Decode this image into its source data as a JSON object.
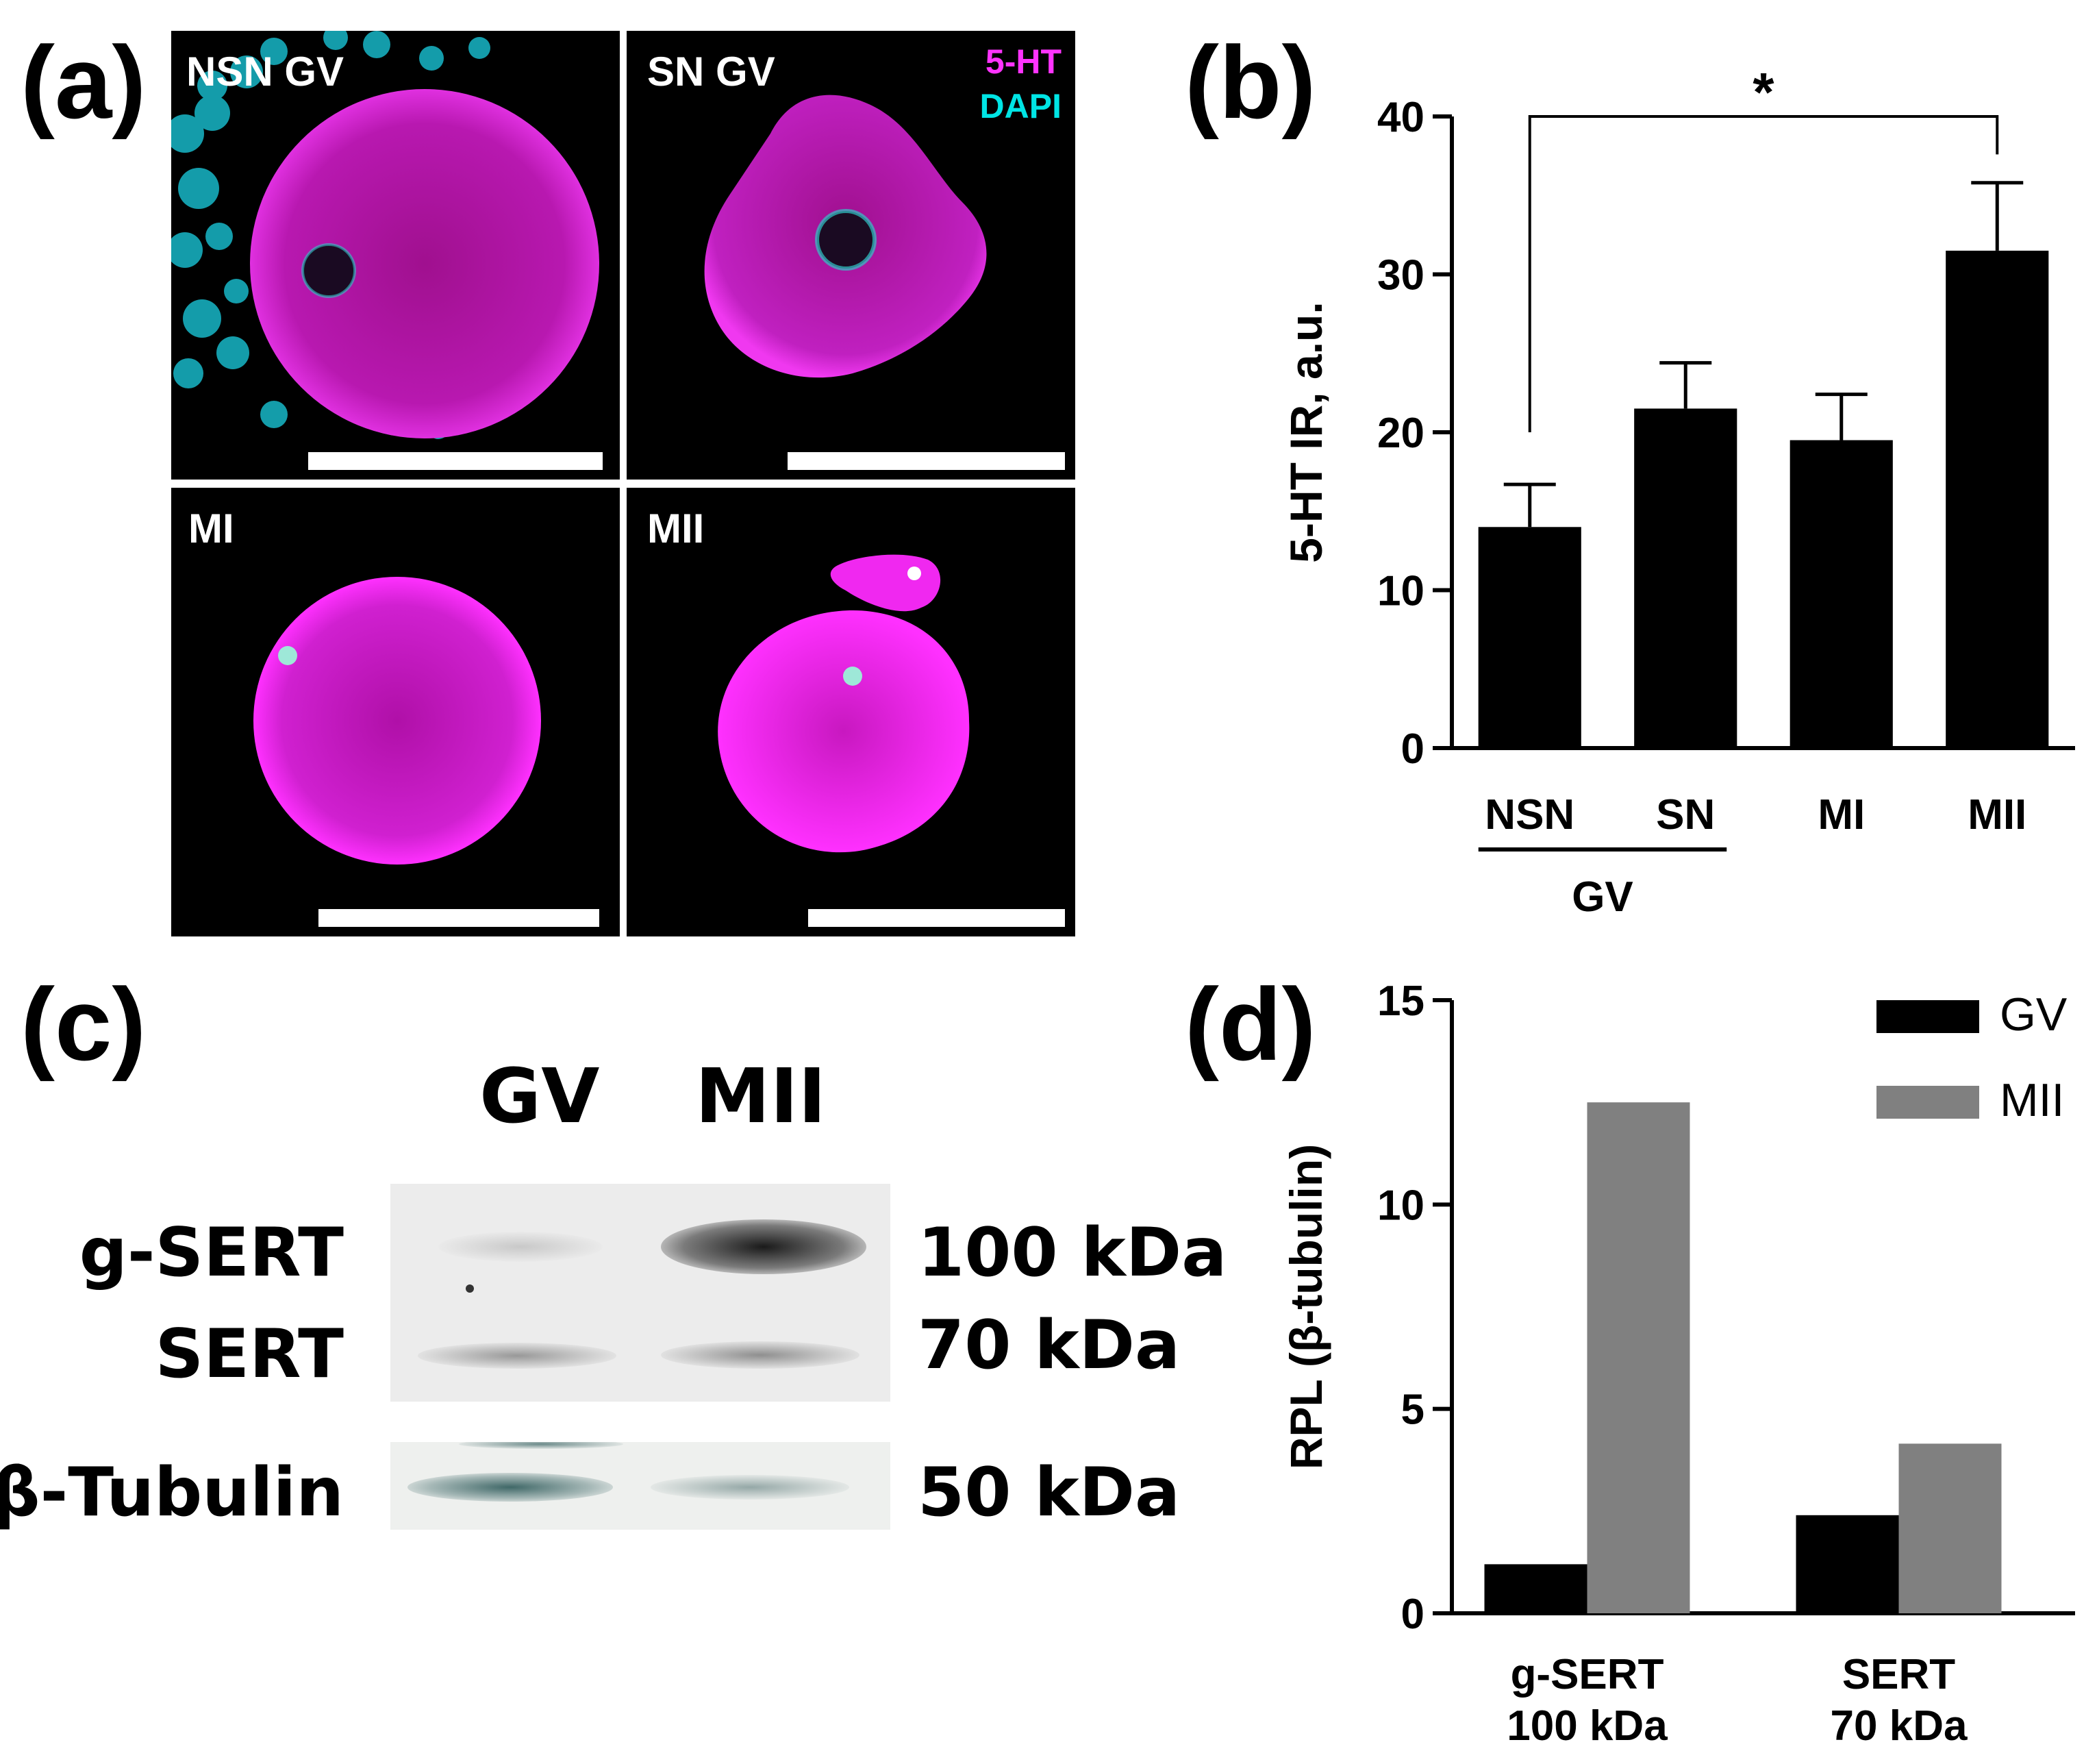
{
  "panels": {
    "a": {
      "letter": "(a)",
      "images": [
        {
          "label": "NSN GV",
          "stage": "NSN GV"
        },
        {
          "label": "SN GV",
          "stage": "SN GV"
        },
        {
          "label": "MI",
          "stage": "MI"
        },
        {
          "label": "MII",
          "stage": "MII"
        }
      ],
      "legend": {
        "serotonin": "5-HT",
        "nuclei": "DAPI"
      },
      "colors": {
        "serotonin": "#ff1aff",
        "nuclei": "#00e0e0"
      }
    },
    "b": {
      "letter": "(b)"
    },
    "c": {
      "letter": "(c)",
      "lanes": [
        "GV",
        "MII"
      ],
      "bands": [
        {
          "name": "g-SERT",
          "size": "100 kDa",
          "gv_intensity": 0.12,
          "mii_intensity": 0.85
        },
        {
          "name": "SERT",
          "size": "70 kDa",
          "gv_intensity": 0.3,
          "mii_intensity": 0.35
        },
        {
          "name": "β-Tubulin",
          "size": "50 kDa",
          "gv_intensity": 0.6,
          "mii_intensity": 0.3
        }
      ]
    },
    "d": {
      "letter": "(d)"
    }
  },
  "chart_data": [
    {
      "panel": "b",
      "type": "bar",
      "categories": [
        "NSN",
        "SN",
        "MI",
        "MII"
      ],
      "group_label": "GV",
      "group_members": [
        "NSN",
        "SN"
      ],
      "values": [
        14,
        21.5,
        19.5,
        31.5
      ],
      "errors": [
        2.7,
        2.9,
        2.9,
        4.3
      ],
      "ylabel": "5-HT IR, a.u.",
      "ylim": [
        0,
        40
      ],
      "yticks": [
        0,
        10,
        20,
        30,
        40
      ],
      "significance": {
        "from": "NSN",
        "to": "MII",
        "label": "*"
      },
      "color": "#000000"
    },
    {
      "panel": "d",
      "type": "bar",
      "categories": [
        "g-SERT\n100 kDa",
        "SERT\n70 kDa"
      ],
      "series": [
        {
          "name": "GV",
          "values": [
            1.2,
            2.4
          ],
          "color": "#000000"
        },
        {
          "name": "MII",
          "values": [
            12.5,
            4.15
          ],
          "color": "#808080"
        }
      ],
      "ylabel": "RPL (β-tubulin)",
      "ylim": [
        0,
        15
      ],
      "yticks": [
        0,
        5,
        10,
        15
      ],
      "legend_position": "top-right"
    }
  ]
}
